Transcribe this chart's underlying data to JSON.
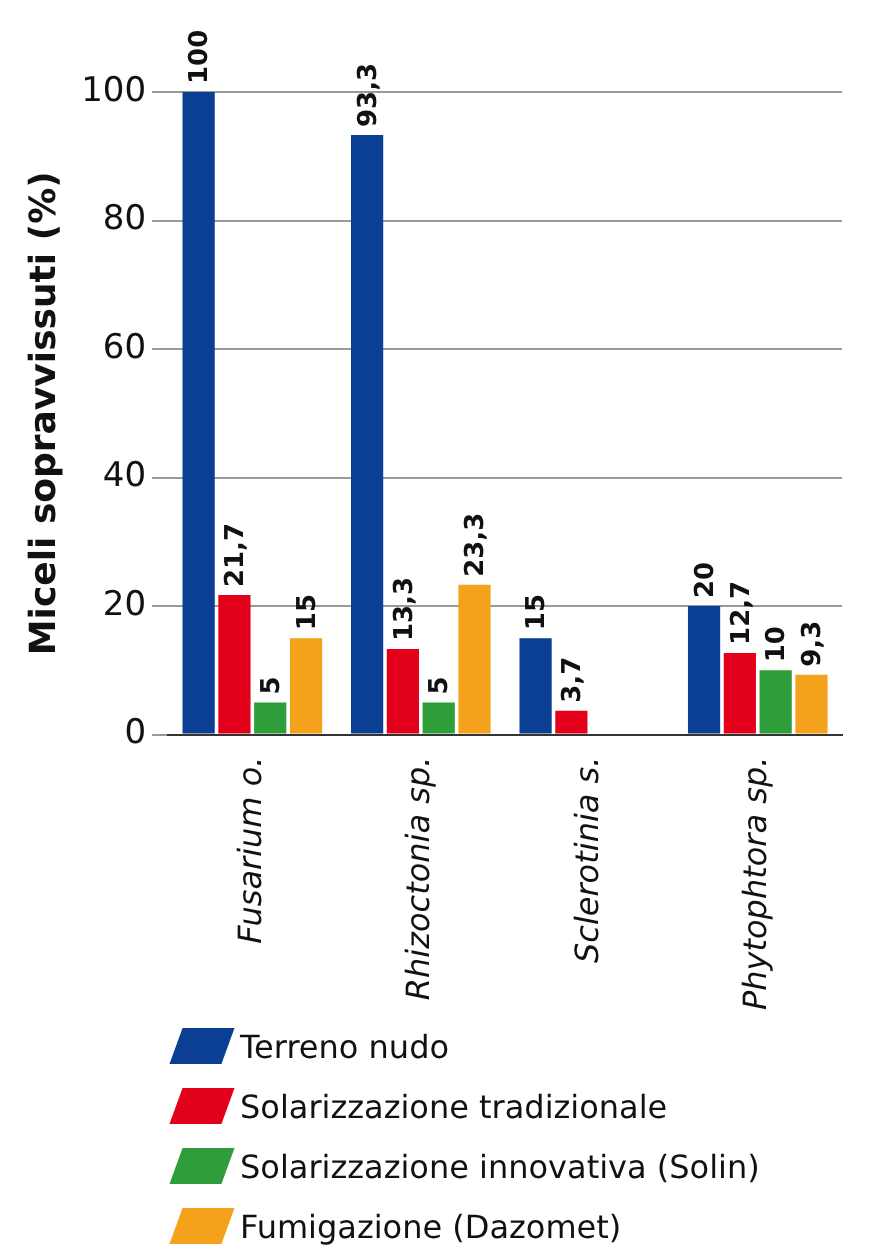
{
  "chart_data": {
    "type": "bar",
    "ylabel": "Miceli sopravvissuti (%)",
    "categories": [
      "Fusarium o.",
      "Rhizoctonia sp.",
      "Sclerotinia s.",
      "Phytophtora sp."
    ],
    "series": [
      {
        "name": "Terreno nudo",
        "color": "#0b3f94",
        "values": [
          100,
          93.3,
          15,
          20
        ],
        "value_labels": [
          "100",
          "93,3",
          "15",
          "20"
        ]
      },
      {
        "name": "Solarizzazione tradizionale",
        "color": "#e2001a",
        "values": [
          21.7,
          13.3,
          3.7,
          12.7
        ],
        "value_labels": [
          "21,7",
          "13,3",
          "3,7",
          "12,7"
        ]
      },
      {
        "name": "Solarizzazione innovativa (Solin)",
        "color": "#2f9e3a",
        "values": [
          5,
          5,
          null,
          10
        ],
        "value_labels": [
          "5",
          "5",
          null,
          "10"
        ]
      },
      {
        "name": "Fumigazione (Dazomet)",
        "color": "#f4a21c",
        "values": [
          15,
          23.3,
          null,
          9.3
        ],
        "value_labels": [
          "15",
          "23,3",
          null,
          "9,3"
        ]
      }
    ],
    "ylim": [
      0,
      100
    ],
    "yticks": [
      0,
      20,
      40,
      60,
      80,
      100
    ],
    "grid": "y",
    "legend": "bottom"
  }
}
